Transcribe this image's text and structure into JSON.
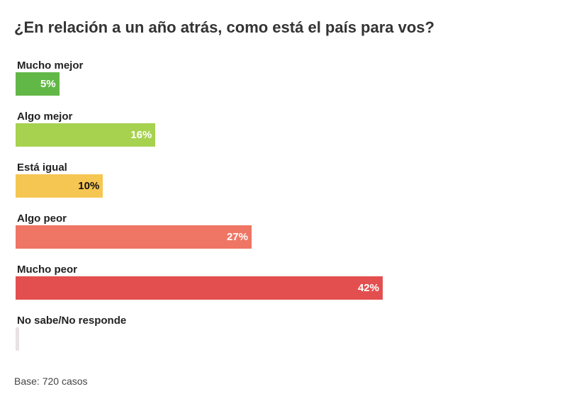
{
  "title": "¿En relación a un año atrás, como está el país para vos?",
  "footer": {
    "base": "Base: 720 casos"
  },
  "chart_data": {
    "type": "bar",
    "orientation": "horizontal",
    "title": "¿En relación a un año atrás, como está el país para vos?",
    "categories": [
      "Mucho mejor",
      "Algo mejor",
      "Está igual",
      "Algo peor",
      "Mucho peor",
      "No sabe/No responde"
    ],
    "values": [
      5,
      16,
      10,
      27,
      42,
      0
    ],
    "value_labels": [
      "5%",
      "16%",
      "10%",
      "27%",
      "42%",
      ""
    ],
    "colors": [
      "#62b847",
      "#a6d24f",
      "#f6c652",
      "#ef7564",
      "#e34f4f",
      "#e9e2e2"
    ],
    "label_colors": [
      "#ffffff",
      "#ffffff",
      "#111111",
      "#ffffff",
      "#ffffff",
      "#ffffff"
    ],
    "xlim": [
      0,
      60
    ],
    "unit": "%",
    "grid": false,
    "legend": "none"
  }
}
